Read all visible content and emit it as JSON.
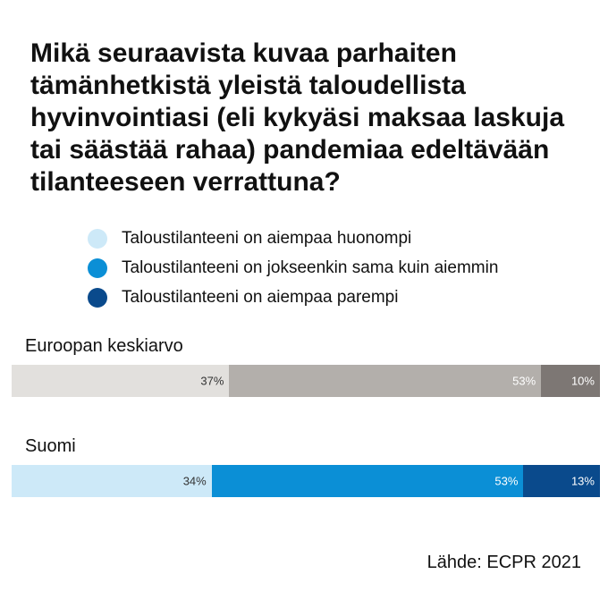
{
  "title": "Mikä seuraavista kuvaa parhaiten tämänhetkistä yleistä taloudellista hyvinvointiasi (eli kykyäsi maksaa laskuja tai säästää rahaa) pandemiaa edeltävään tilanteeseen verrattuna?",
  "source": "Lähde: ECPR 2021",
  "chart_data": {
    "type": "bar",
    "orientation": "horizontal-stacked-100",
    "title": "Mikä seuraavista kuvaa parhaiten tämänhetkistä yleistä taloudellista hyvinvointiasi (eli kykyäsi maksaa laskuja tai säästää rahaa) pandemiaa edeltävään tilanteeseen verrattuna?",
    "legend": [
      {
        "label": "Taloustilanteeni on aiempaa huonompi",
        "color": "#cde9f8"
      },
      {
        "label": "Taloustilanteeni on jokseenkin sama kuin aiemmin",
        "color": "#0b8fd6"
      },
      {
        "label": "Taloustilanteeni on aiempaa parempi",
        "color": "#0a4a8c"
      }
    ],
    "legend_position": "top",
    "categories": [
      "Euroopan keskiarvo",
      "Suomi"
    ],
    "series": [
      {
        "name": "Taloustilanteeni on aiempaa huonompi",
        "values": [
          37,
          34
        ],
        "labels": [
          "37%",
          "34%"
        ]
      },
      {
        "name": "Taloustilanteeni on jokseenkin sama kuin aiemmin",
        "values": [
          53,
          53
        ],
        "labels": [
          "53%",
          "53%"
        ]
      },
      {
        "name": "Taloustilanteeni on aiempaa parempi",
        "values": [
          10,
          13
        ],
        "labels": [
          "10%",
          "13%"
        ]
      }
    ],
    "colors": {
      "Euroopan keskiarvo": [
        "#e2e0dd",
        "#b3afab",
        "#7d7774"
      ],
      "Suomi": [
        "#cde9f8",
        "#0b8fd6",
        "#0a4a8c"
      ]
    },
    "label_colors": {
      "Euroopan keskiarvo": [
        "#333333",
        "#ffffff",
        "#ffffff"
      ],
      "Suomi": [
        "#333333",
        "#ffffff",
        "#ffffff"
      ]
    },
    "xlim": [
      0,
      100
    ]
  }
}
